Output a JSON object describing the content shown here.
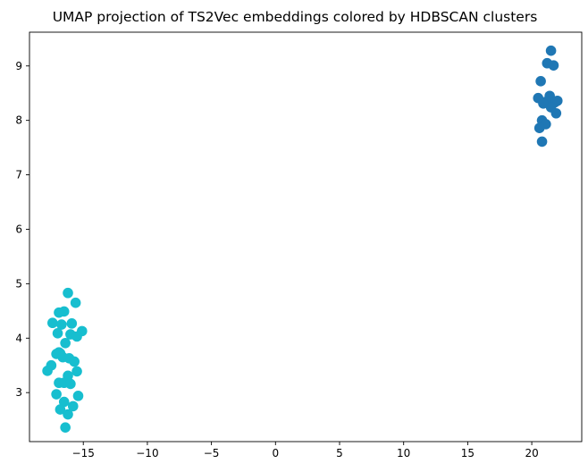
{
  "chart_data": {
    "type": "scatter",
    "title": "UMAP projection of TS2Vec embeddings colored by HDBSCAN clusters",
    "xlabel": "",
    "ylabel": "",
    "xlim": [
      -19.2,
      23.9
    ],
    "ylim": [
      2.1,
      9.62
    ],
    "xticks": [
      -15,
      -10,
      -5,
      0,
      5,
      10,
      15,
      20
    ],
    "yticks": [
      3,
      4,
      5,
      6,
      7,
      8,
      9
    ],
    "grid": false,
    "legend": "none",
    "series": [
      {
        "color": "#17becf",
        "points": [
          [
            -16.2,
            4.83
          ],
          [
            -15.6,
            4.65
          ],
          [
            -16.5,
            4.49
          ],
          [
            -16.9,
            4.47
          ],
          [
            -17.4,
            4.28
          ],
          [
            -15.9,
            4.27
          ],
          [
            -16.7,
            4.25
          ],
          [
            -15.1,
            4.13
          ],
          [
            -17.0,
            4.09
          ],
          [
            -16.0,
            4.07
          ],
          [
            -15.5,
            4.03
          ],
          [
            -16.4,
            3.91
          ],
          [
            -16.9,
            3.74
          ],
          [
            -16.8,
            3.72
          ],
          [
            -17.1,
            3.71
          ],
          [
            -16.6,
            3.65
          ],
          [
            -16.1,
            3.63
          ],
          [
            -15.7,
            3.57
          ],
          [
            -17.5,
            3.5
          ],
          [
            -17.8,
            3.4
          ],
          [
            -15.5,
            3.39
          ],
          [
            -16.2,
            3.31
          ],
          [
            -16.9,
            3.18
          ],
          [
            -16.5,
            3.18
          ],
          [
            -16.0,
            3.16
          ],
          [
            -17.1,
            2.97
          ],
          [
            -15.4,
            2.94
          ],
          [
            -16.5,
            2.83
          ],
          [
            -15.8,
            2.75
          ],
          [
            -16.8,
            2.69
          ],
          [
            -16.2,
            2.6
          ],
          [
            -16.4,
            2.36
          ]
        ]
      },
      {
        "color": "#1f77b4",
        "points": [
          [
            21.5,
            9.28
          ],
          [
            21.2,
            9.05
          ],
          [
            21.7,
            9.01
          ],
          [
            20.7,
            8.72
          ],
          [
            21.4,
            8.45
          ],
          [
            20.5,
            8.41
          ],
          [
            21.1,
            8.34
          ],
          [
            21.8,
            8.33
          ],
          [
            22.0,
            8.36
          ],
          [
            20.9,
            8.31
          ],
          [
            21.5,
            8.24
          ],
          [
            21.9,
            8.13
          ],
          [
            20.8,
            8.0
          ],
          [
            21.1,
            7.93
          ],
          [
            20.6,
            7.86
          ],
          [
            20.8,
            7.61
          ]
        ]
      }
    ]
  }
}
